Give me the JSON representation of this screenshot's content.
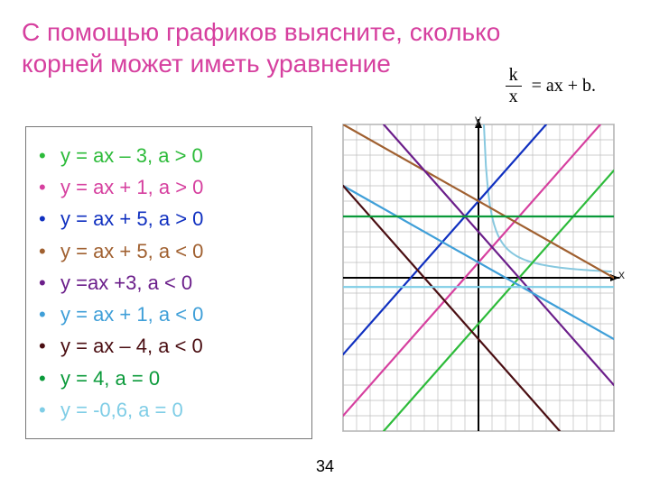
{
  "title": {
    "line1": "С помощью графиков выясните, сколько",
    "line2": "корней может иметь уравнение",
    "color": "#d6409f"
  },
  "formula": {
    "num": "k",
    "den": "x",
    "rhs": "= ax + b."
  },
  "equations": [
    {
      "text": "y = ax – 3, a > 0",
      "color": "#2dbb3a"
    },
    {
      "text": "y = ax + 1, a > 0",
      "color": "#d6409f"
    },
    {
      "text": "y = ax + 5, a > 0",
      "color": "#1030c0"
    },
    {
      "text": "y = ax + 5, a < 0",
      "color": "#a06030"
    },
    {
      "text": "y =ax +3, a < 0",
      "color": "#6b1e8a"
    },
    {
      "text": "y = ax + 1, a < 0",
      "color": "#3f9fd8"
    },
    {
      "text": "y = ax – 4, a < 0",
      "color": "#4a0e12"
    },
    {
      "text": "y = 4, a = 0",
      "color": "#0a9a3a"
    },
    {
      "text": "y = -0,6, a = 0",
      "color": "#7fcde6"
    }
  ],
  "graph": {
    "grid": {
      "size": 20,
      "strokeMinor": "#bdbdbd",
      "strokeMajor": "#707070",
      "bg": "#ffffff"
    },
    "range": {
      "xmin": -10,
      "xmax": 10,
      "ymin": -10,
      "ymax": 10
    },
    "axes": {
      "color": "#000000",
      "width": 2
    },
    "labels": {
      "x": "x",
      "y": "y",
      "color": "#333333",
      "fontsize": 14
    },
    "lines": [
      {
        "color": "#2dbb3a",
        "w": 2.2,
        "p1": [
          -7,
          -10
        ],
        "p2": [
          10,
          7
        ]
      },
      {
        "color": "#d6409f",
        "w": 2.2,
        "p1": [
          -10,
          -9
        ],
        "p2": [
          9,
          10
        ]
      },
      {
        "color": "#1030c0",
        "w": 2.2,
        "p1": [
          -10,
          -5
        ],
        "p2": [
          5,
          10
        ]
      },
      {
        "color": "#a06030",
        "w": 2.2,
        "p1": [
          -10,
          10
        ],
        "p2": [
          10,
          0
        ]
      },
      {
        "color": "#6b1e8a",
        "w": 2.2,
        "p1": [
          -7,
          10
        ],
        "p2": [
          10,
          -7
        ]
      },
      {
        "color": "#3f9fd8",
        "w": 2.2,
        "p1": [
          -10,
          6
        ],
        "p2": [
          10,
          -4
        ]
      },
      {
        "color": "#4a0e12",
        "w": 2.2,
        "p1": [
          -10,
          6
        ],
        "p2": [
          6,
          -10
        ]
      },
      {
        "color": "#0a9a3a",
        "w": 2.2,
        "p1": [
          -10,
          4
        ],
        "p2": [
          10,
          4
        ]
      },
      {
        "color": "#7fcde6",
        "w": 2.2,
        "p1": [
          -10,
          -0.6
        ],
        "p2": [
          10,
          -0.6
        ]
      }
    ],
    "hyperbola": {
      "k": 4,
      "color": "#87c8df",
      "w": 2
    }
  },
  "pageNumber": "34"
}
